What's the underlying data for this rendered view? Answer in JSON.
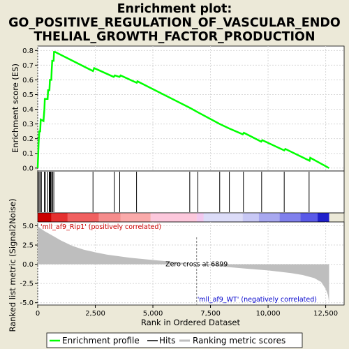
{
  "title_line1": "Enrichment plot:",
  "title_line2": "GO_POSITIVE_REGULATION_OF_VASCULAR_ENDO",
  "title_line3": "THELIAL_GROWTH_FACTOR_PRODUCTION",
  "colors": {
    "background": "#ece9d8",
    "es_line": "#00ff00",
    "hits": "#000000",
    "metric_fill": "#bebebe",
    "positive_label": "#cc0000",
    "negative_label": "#0000cc",
    "zero_line": "#808080"
  },
  "chart_data": {
    "type": "line",
    "es_panel": {
      "ylabel": "Enrichment score (ES)",
      "ylim": [
        -0.02,
        0.83
      ],
      "yticks": [
        "0.0",
        "0.1",
        "0.2",
        "0.3",
        "0.4",
        "0.5",
        "0.6",
        "0.7",
        "0.8"
      ],
      "grid": true,
      "points": [
        [
          0,
          0.0
        ],
        [
          20,
          0.09
        ],
        [
          40,
          0.17
        ],
        [
          70,
          0.25
        ],
        [
          110,
          0.25
        ],
        [
          130,
          0.33
        ],
        [
          250,
          0.32
        ],
        [
          290,
          0.4
        ],
        [
          310,
          0.47
        ],
        [
          430,
          0.47
        ],
        [
          450,
          0.53
        ],
        [
          510,
          0.53
        ],
        [
          530,
          0.6
        ],
        [
          590,
          0.6
        ],
        [
          610,
          0.67
        ],
        [
          630,
          0.73
        ],
        [
          690,
          0.73
        ],
        [
          710,
          0.79
        ],
        [
          750,
          0.79
        ],
        [
          2400,
          0.66
        ],
        [
          2450,
          0.68
        ],
        [
          3300,
          0.62
        ],
        [
          3350,
          0.63
        ],
        [
          3550,
          0.62
        ],
        [
          3600,
          0.63
        ],
        [
          4300,
          0.58
        ],
        [
          4330,
          0.59
        ],
        [
          6600,
          0.41
        ],
        [
          6950,
          0.38
        ],
        [
          7900,
          0.3
        ],
        [
          8300,
          0.27
        ],
        [
          8900,
          0.23
        ],
        [
          8950,
          0.24
        ],
        [
          9700,
          0.18
        ],
        [
          9750,
          0.19
        ],
        [
          10700,
          0.12
        ],
        [
          10750,
          0.13
        ],
        [
          11800,
          0.05
        ],
        [
          11830,
          0.07
        ],
        [
          12650,
          0.0
        ]
      ]
    },
    "hits": [
      15,
      60,
      110,
      160,
      290,
      330,
      440,
      500,
      530,
      560,
      600,
      650,
      700,
      2400,
      3330,
      3560,
      4290,
      6600,
      6950,
      7900,
      8320,
      8930,
      9720,
      10700,
      11780
    ],
    "metric_panel": {
      "ylabel": "Ranked list metric (Signal2Noise)",
      "ylim": [
        -5.3,
        5.5
      ],
      "yticks": [
        "-5.0",
        "-2.5",
        "0.0",
        "2.5",
        "5.0"
      ],
      "curve": [
        [
          0,
          5.0
        ],
        [
          100,
          4.7
        ],
        [
          300,
          4.3
        ],
        [
          600,
          3.8
        ],
        [
          1000,
          3.1
        ],
        [
          1500,
          2.4
        ],
        [
          2000,
          1.9
        ],
        [
          2500,
          1.55
        ],
        [
          3000,
          1.25
        ],
        [
          4000,
          0.85
        ],
        [
          5000,
          0.55
        ],
        [
          6000,
          0.28
        ],
        [
          6899,
          0.0
        ],
        [
          8000,
          -0.3
        ],
        [
          9000,
          -0.55
        ],
        [
          10000,
          -0.8
        ],
        [
          11000,
          -1.15
        ],
        [
          11500,
          -1.4
        ],
        [
          12000,
          -1.8
        ],
        [
          12300,
          -2.3
        ],
        [
          12500,
          -3.2
        ],
        [
          12600,
          -4.0
        ],
        [
          12650,
          -5.0
        ]
      ]
    },
    "xlabel": "Rank in Ordered Dataset",
    "xlim": [
      0,
      13300
    ],
    "xticks": [
      "0",
      "2,500",
      "5,000",
      "7,500",
      "10,000",
      "12,500"
    ],
    "zero_cross_label": "Zero cross at 6899",
    "zero_cross": 6899,
    "positive_label": "'mll_af9_Rip1' (positively correlated)",
    "negative_label": "'mll_af9_WT' (negatively correlated)",
    "legend": [
      "Enrichment profile",
      "Hits",
      "Ranking metric scores"
    ]
  }
}
